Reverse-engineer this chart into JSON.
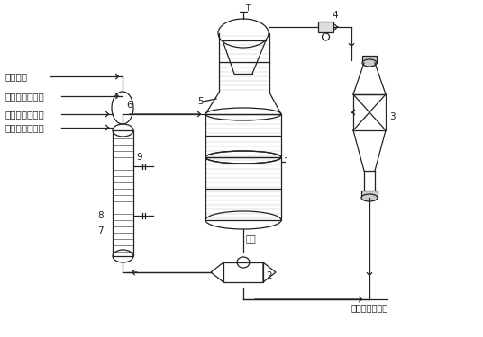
{
  "bg_color": "#ffffff",
  "lc": "#222222",
  "lw": 0.9,
  "labels": {
    "xunhuan": "循环尾气",
    "air": "空气来自罗茨机",
    "methanol": "甲醇来自甲醇泵",
    "water": "软水来自软水泵",
    "formaldehyde": "甲醇",
    "to_tower": "送至甲醇吸收塔"
  },
  "font_size": 7.5
}
